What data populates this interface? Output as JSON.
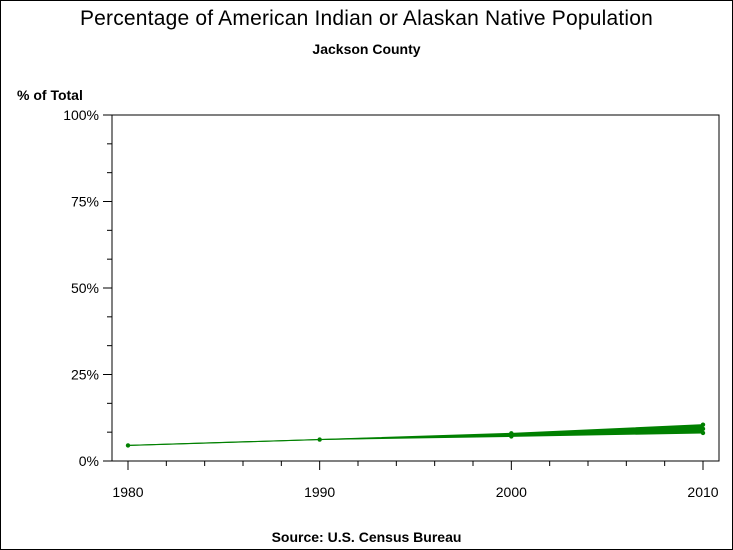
{
  "chart_data": {
    "type": "line",
    "title": "Percentage of American Indian or Alaskan Native Population",
    "subtitle": "Jackson County",
    "ylabel": "% of Total",
    "xlabel": "",
    "source": "Source: U.S. Census Bureau",
    "x_ticks": [
      1980,
      1990,
      2000,
      2010
    ],
    "y_ticks": [
      "0%",
      "25%",
      "50%",
      "75%",
      "100%"
    ],
    "xlim": [
      1980,
      2010
    ],
    "ylim": [
      0,
      100
    ],
    "line_color": "#008000",
    "x": [
      1980,
      1990,
      2000,
      2010
    ],
    "values": [
      4.5,
      6.2,
      7.6,
      9.3
    ],
    "band_upper": [
      4.5,
      6.2,
      8.0,
      10.5
    ],
    "band_lower": [
      4.5,
      6.2,
      7.1,
      8.1
    ],
    "grid": false
  }
}
